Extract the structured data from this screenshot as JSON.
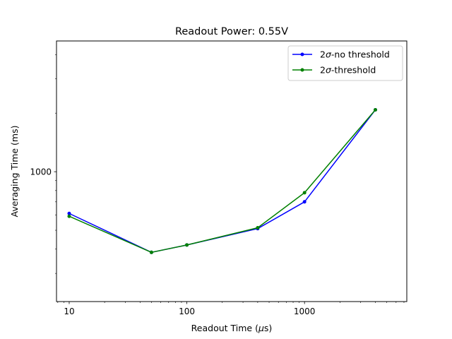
{
  "chart_data": {
    "type": "line",
    "title": "Readout Power: 0.55V",
    "xlabel_prefix": "Readout Time (",
    "xlabel_symbol": "μ",
    "xlabel_suffix": "s)",
    "ylabel": "Averaging Time (ms)",
    "xscale": "log",
    "yscale": "log",
    "xlim": [
      7.8,
      7400
    ],
    "ylim": [
      215,
      4700
    ],
    "xticks": [
      10,
      100,
      1000
    ],
    "xtick_labels": [
      "10",
      "100",
      "1000"
    ],
    "yticks": [
      1000
    ],
    "ytick_labels": [
      "1000"
    ],
    "grid": false,
    "legend_position": "top-right",
    "x": [
      10,
      50,
      100,
      400,
      1000,
      4000
    ],
    "series": [
      {
        "name_prefix": "2",
        "name_symbol": "σ",
        "name_suffix": "-no threshold",
        "color": "#0000ff",
        "values": [
          610,
          385,
          420,
          510,
          700,
          2080
        ]
      },
      {
        "name_prefix": "2",
        "name_symbol": "σ",
        "name_suffix": "-threshold",
        "color": "#008000",
        "values": [
          590,
          385,
          420,
          515,
          780,
          2080
        ]
      }
    ]
  }
}
